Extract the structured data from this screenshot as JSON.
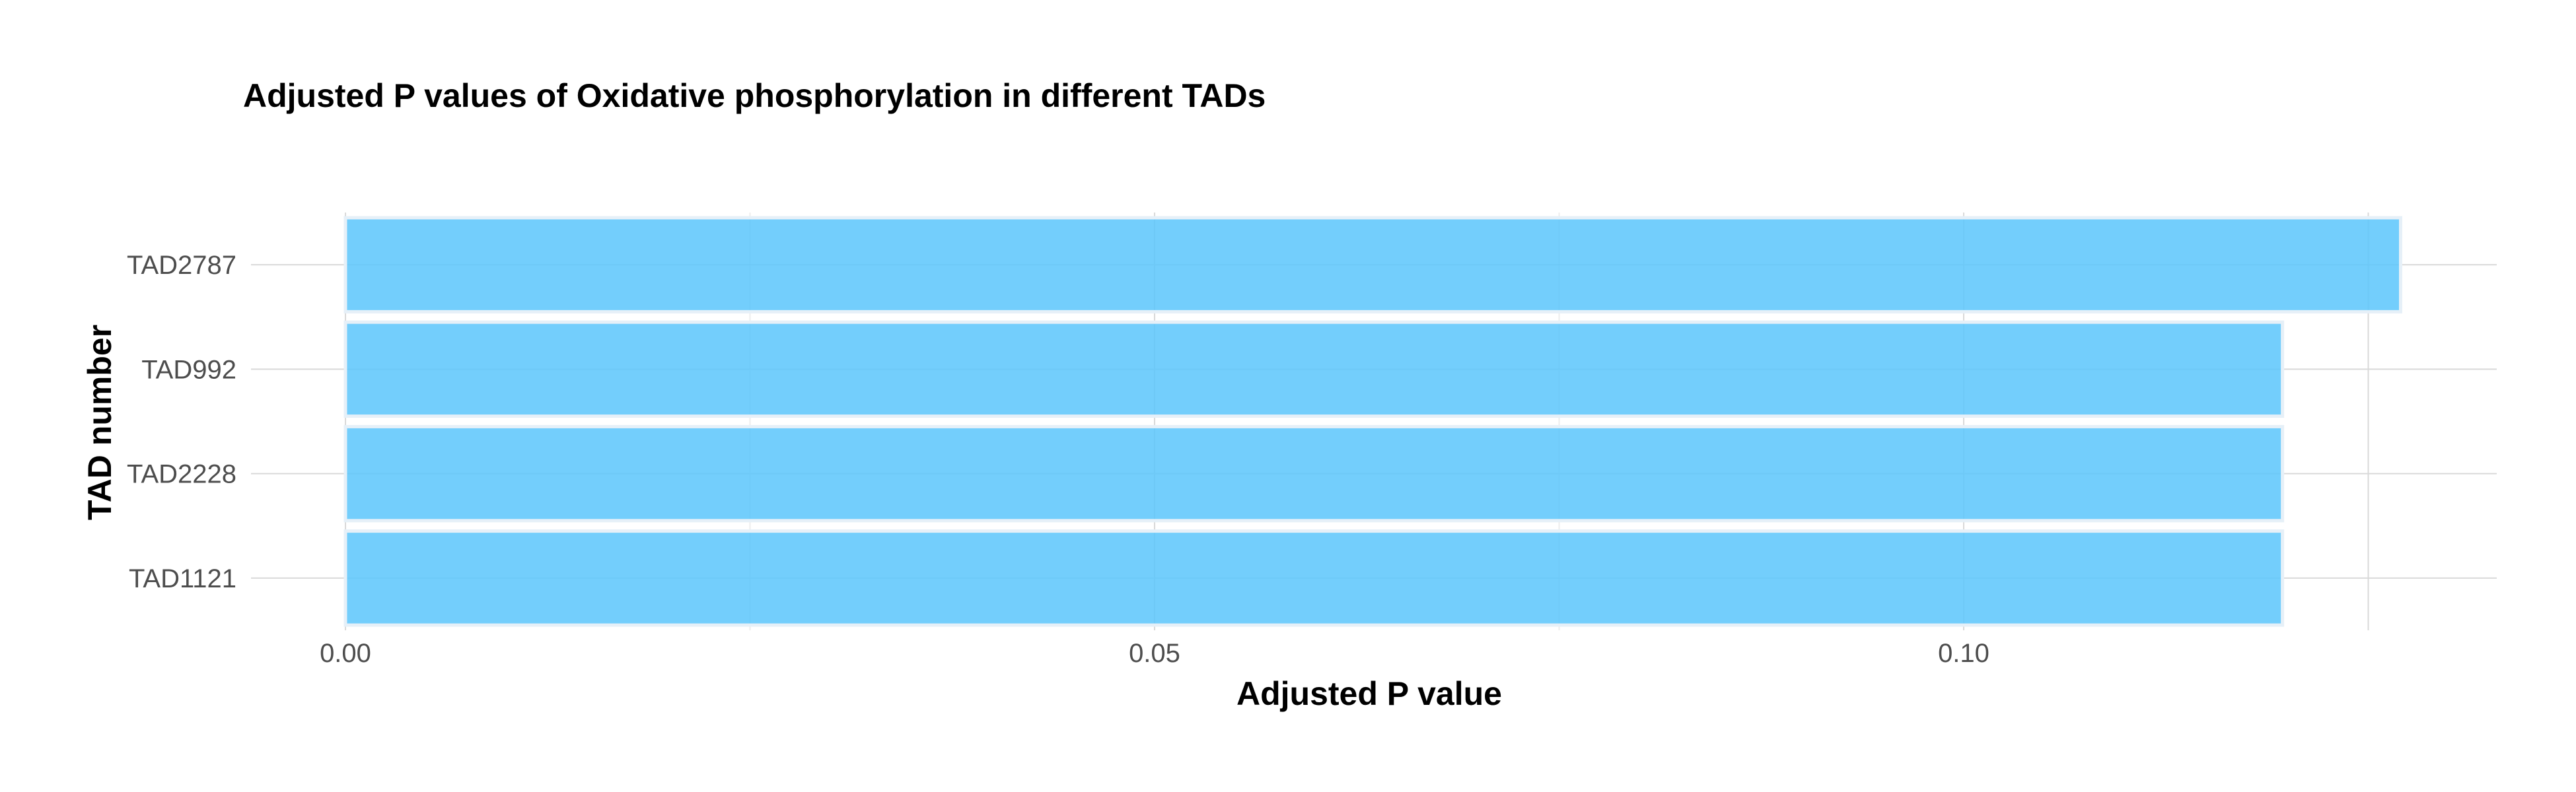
{
  "chart_data": {
    "type": "bar",
    "orientation": "horizontal",
    "title": "Adjusted P values of Oxidative phosphorylation in different TADs",
    "xlabel": "Adjusted P value",
    "ylabel": "TAD number",
    "categories": [
      "TAD2787",
      "TAD992",
      "TAD2228",
      "TAD1121"
    ],
    "values": [
      0.127,
      0.1197,
      0.1197,
      0.1197
    ],
    "xlim": [
      0,
      0.133
    ],
    "xticks": [
      0.0,
      0.05,
      0.1
    ],
    "xtick_labels": [
      "0.00",
      "0.05",
      "0.10"
    ],
    "grid": true,
    "bar_color": "#5bc6fb"
  }
}
